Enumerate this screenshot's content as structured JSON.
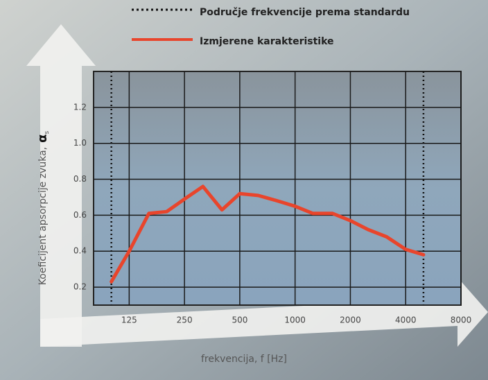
{
  "chart_data": {
    "type": "line",
    "legend_standard": "Područje frekvencije prema standardu",
    "standard_range": [
      100,
      5000
    ],
    "xlabel": "frekvencija, f [Hz]",
    "ylabel": "Koeficijent apsorpcije zvuka,",
    "ylabel_symbol": "α",
    "ylabel_subscript": "s",
    "x": [
      100,
      125,
      160,
      200,
      250,
      315,
      400,
      500,
      630,
      800,
      1000,
      1250,
      1600,
      2000,
      2500,
      3150,
      4000,
      5000
    ],
    "series": [
      {
        "name": "Izmjerene karakteristike",
        "color": "#e8452c",
        "values": [
          0.23,
          0.4,
          0.61,
          0.62,
          0.69,
          0.76,
          0.63,
          0.72,
          0.71,
          0.68,
          0.65,
          0.61,
          0.61,
          0.57,
          0.52,
          0.48,
          0.41,
          0.38
        ]
      }
    ],
    "xlim": [
      80,
      8000
    ],
    "log_x": true,
    "xticks": [
      125,
      250,
      500,
      1000,
      2000,
      4000,
      8000
    ],
    "ylim": [
      0.1,
      1.4
    ],
    "yticks": [
      0.2,
      0.4,
      0.6,
      0.8,
      {
        "value": 1,
        "label": "1.0"
      },
      1.2
    ],
    "grid": true
  }
}
